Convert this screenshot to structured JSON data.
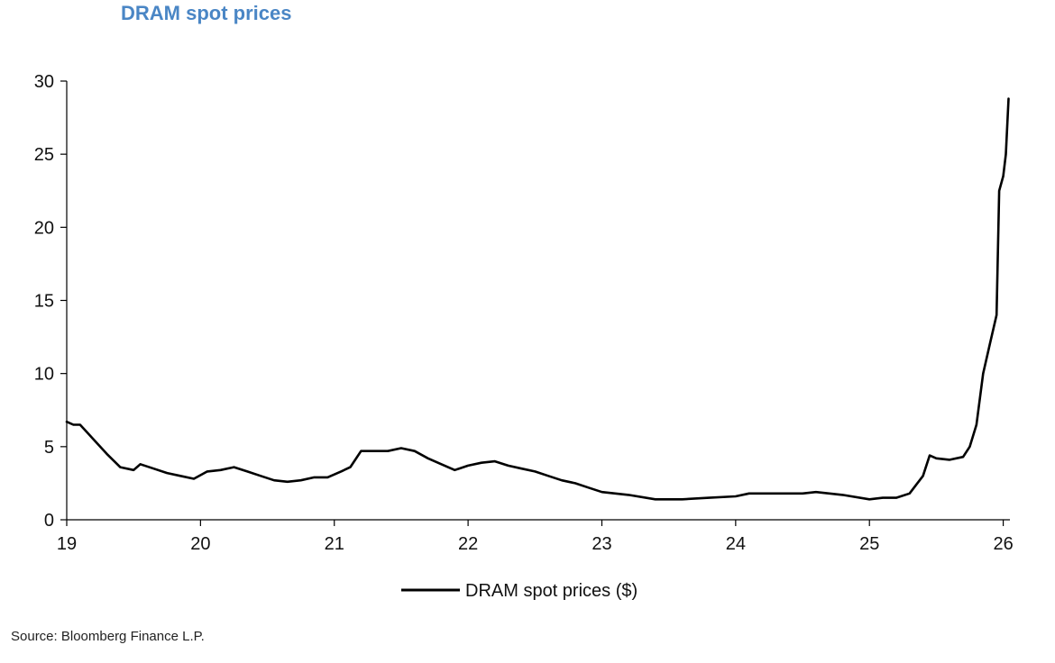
{
  "chart_data": {
    "type": "line",
    "title": "DRAM spot prices",
    "xlabel": "",
    "ylabel": "",
    "xlim": [
      19,
      26.05
    ],
    "ylim": [
      0,
      30
    ],
    "x_ticks": [
      19,
      20,
      21,
      22,
      23,
      24,
      25,
      26
    ],
    "x_tick_labels": [
      "19",
      "20",
      "21",
      "22",
      "23",
      "24",
      "25",
      "26"
    ],
    "y_ticks": [
      0,
      5,
      10,
      15,
      20,
      25,
      30
    ],
    "y_tick_labels": [
      "0",
      "5",
      "10",
      "15",
      "20",
      "25",
      "30"
    ],
    "grid": false,
    "legend": "bottom-center",
    "series": [
      {
        "name": "DRAM spot prices ($)",
        "color": "#000000",
        "x": [
          19.0,
          19.05,
          19.1,
          19.15,
          19.2,
          19.3,
          19.4,
          19.5,
          19.55,
          19.65,
          19.75,
          19.85,
          19.95,
          20.05,
          20.15,
          20.25,
          20.35,
          20.45,
          20.55,
          20.65,
          20.75,
          20.85,
          20.95,
          21.05,
          21.12,
          21.2,
          21.3,
          21.4,
          21.5,
          21.6,
          21.7,
          21.8,
          21.9,
          22.0,
          22.1,
          22.2,
          22.3,
          22.4,
          22.5,
          22.6,
          22.7,
          22.8,
          22.9,
          23.0,
          23.2,
          23.4,
          23.6,
          23.8,
          24.0,
          24.1,
          24.3,
          24.5,
          24.6,
          24.8,
          25.0,
          25.1,
          25.2,
          25.3,
          25.4,
          25.45,
          25.5,
          25.6,
          25.7,
          25.75,
          25.8,
          25.85,
          25.9,
          25.95,
          25.97,
          26.0,
          26.02,
          26.04
        ],
        "y": [
          6.7,
          6.5,
          6.5,
          6.0,
          5.5,
          4.5,
          3.6,
          3.4,
          3.8,
          3.5,
          3.2,
          3.0,
          2.8,
          3.3,
          3.4,
          3.6,
          3.3,
          3.0,
          2.7,
          2.6,
          2.7,
          2.9,
          2.9,
          3.3,
          3.6,
          4.7,
          4.7,
          4.7,
          4.9,
          4.7,
          4.2,
          3.8,
          3.4,
          3.7,
          3.9,
          4.0,
          3.7,
          3.5,
          3.3,
          3.0,
          2.7,
          2.5,
          2.2,
          1.9,
          1.7,
          1.4,
          1.4,
          1.5,
          1.6,
          1.8,
          1.8,
          1.8,
          1.9,
          1.7,
          1.4,
          1.5,
          1.5,
          1.8,
          3.0,
          4.4,
          4.2,
          4.1,
          4.3,
          5.0,
          6.5,
          10.0,
          12.0,
          14.0,
          22.5,
          23.5,
          25.0,
          28.8
        ]
      }
    ],
    "source": "Source: Bloomberg Finance L.P."
  }
}
